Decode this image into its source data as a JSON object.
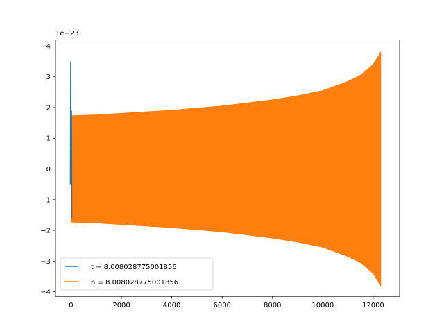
{
  "chart_data": {
    "type": "line",
    "title": "",
    "xlabel": "",
    "ylabel": "",
    "y_offset_label": "1e−23",
    "xlim": [
      -620,
      13050
    ],
    "ylim": [
      -4.15,
      4.2
    ],
    "x_ticks": [
      {
        "value": 0,
        "label": "0"
      },
      {
        "value": 2000,
        "label": "2000"
      },
      {
        "value": 4000,
        "label": "4000"
      },
      {
        "value": 6000,
        "label": "6000"
      },
      {
        "value": 8000,
        "label": "8000"
      },
      {
        "value": 10000,
        "label": "10000"
      },
      {
        "value": 12000,
        "label": "12000"
      }
    ],
    "y_ticks": [
      {
        "value": 4,
        "label": "4"
      },
      {
        "value": 3,
        "label": "3"
      },
      {
        "value": 2,
        "label": "2"
      },
      {
        "value": 1,
        "label": "1"
      },
      {
        "value": 0,
        "label": "0"
      },
      {
        "value": -1,
        "label": "−1"
      },
      {
        "value": -2,
        "label": "−2"
      },
      {
        "value": -3,
        "label": "−3"
      },
      {
        "value": -4,
        "label": "−4"
      }
    ],
    "legend_position": "lower-left",
    "grid": false,
    "series": [
      {
        "name": "t = 8.008028775001856",
        "color": "#1f77b4",
        "points": [
          [
            -30,
            -0.5
          ],
          [
            -15,
            3.5
          ],
          [
            0,
            0.7
          ],
          [
            15,
            1.9
          ],
          [
            30,
            -1.6
          ]
        ]
      },
      {
        "name": "h = 8.008028775001856",
        "color": "#ff7f0e",
        "style": "filled-oscillation-envelope",
        "x_start": 0,
        "x_end": 12300,
        "envelope": [
          [
            0,
            1.73
          ],
          [
            1000,
            1.76
          ],
          [
            2000,
            1.81
          ],
          [
            3000,
            1.86
          ],
          [
            4000,
            1.91
          ],
          [
            5000,
            1.98
          ],
          [
            6000,
            2.05
          ],
          [
            7000,
            2.15
          ],
          [
            8000,
            2.25
          ],
          [
            9000,
            2.38
          ],
          [
            10000,
            2.55
          ],
          [
            11000,
            2.85
          ],
          [
            11500,
            3.05
          ],
          [
            12000,
            3.4
          ],
          [
            12300,
            3.8
          ]
        ]
      }
    ]
  }
}
